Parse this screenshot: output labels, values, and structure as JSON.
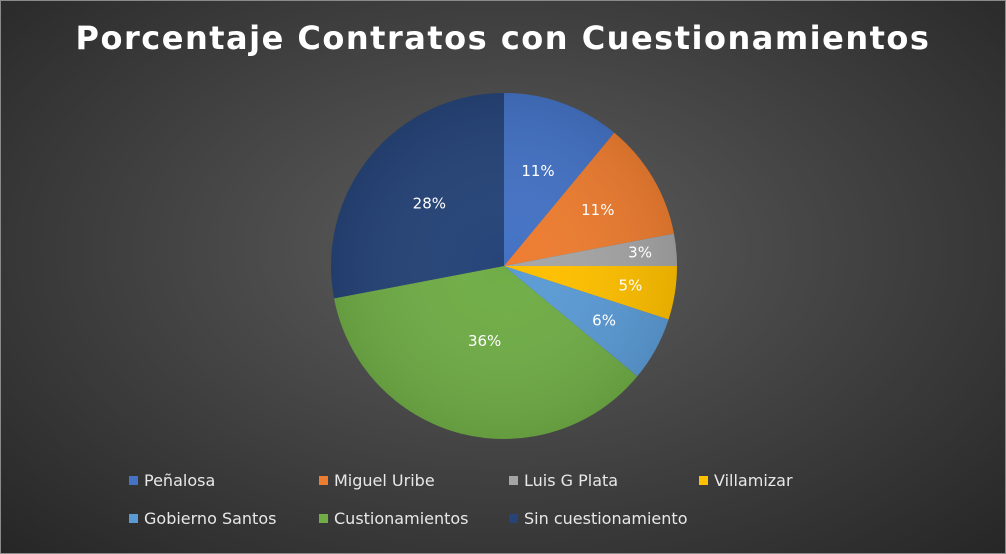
{
  "chart_data": {
    "type": "pie",
    "title": "Porcentaje Contratos con Cuestionamientos",
    "categories": [
      "Peñalosa",
      "Miguel Uribe",
      "Luis G Plata",
      "Villamizar",
      "Gobierno Santos",
      "Custionamientos",
      "Sin cuestionamiento"
    ],
    "values": [
      11,
      11,
      3,
      5,
      6,
      36,
      28
    ],
    "labels": [
      "11%",
      "11%",
      "3%",
      "5%",
      "6%",
      "36%",
      "28%"
    ],
    "colors": [
      "#4472C4",
      "#ED7D31",
      "#A5A5A5",
      "#FFC000",
      "#5B9BD5",
      "#70AD47",
      "#264478"
    ],
    "start": "12 o'clock",
    "direction": "clockwise",
    "legend_position": "bottom"
  }
}
